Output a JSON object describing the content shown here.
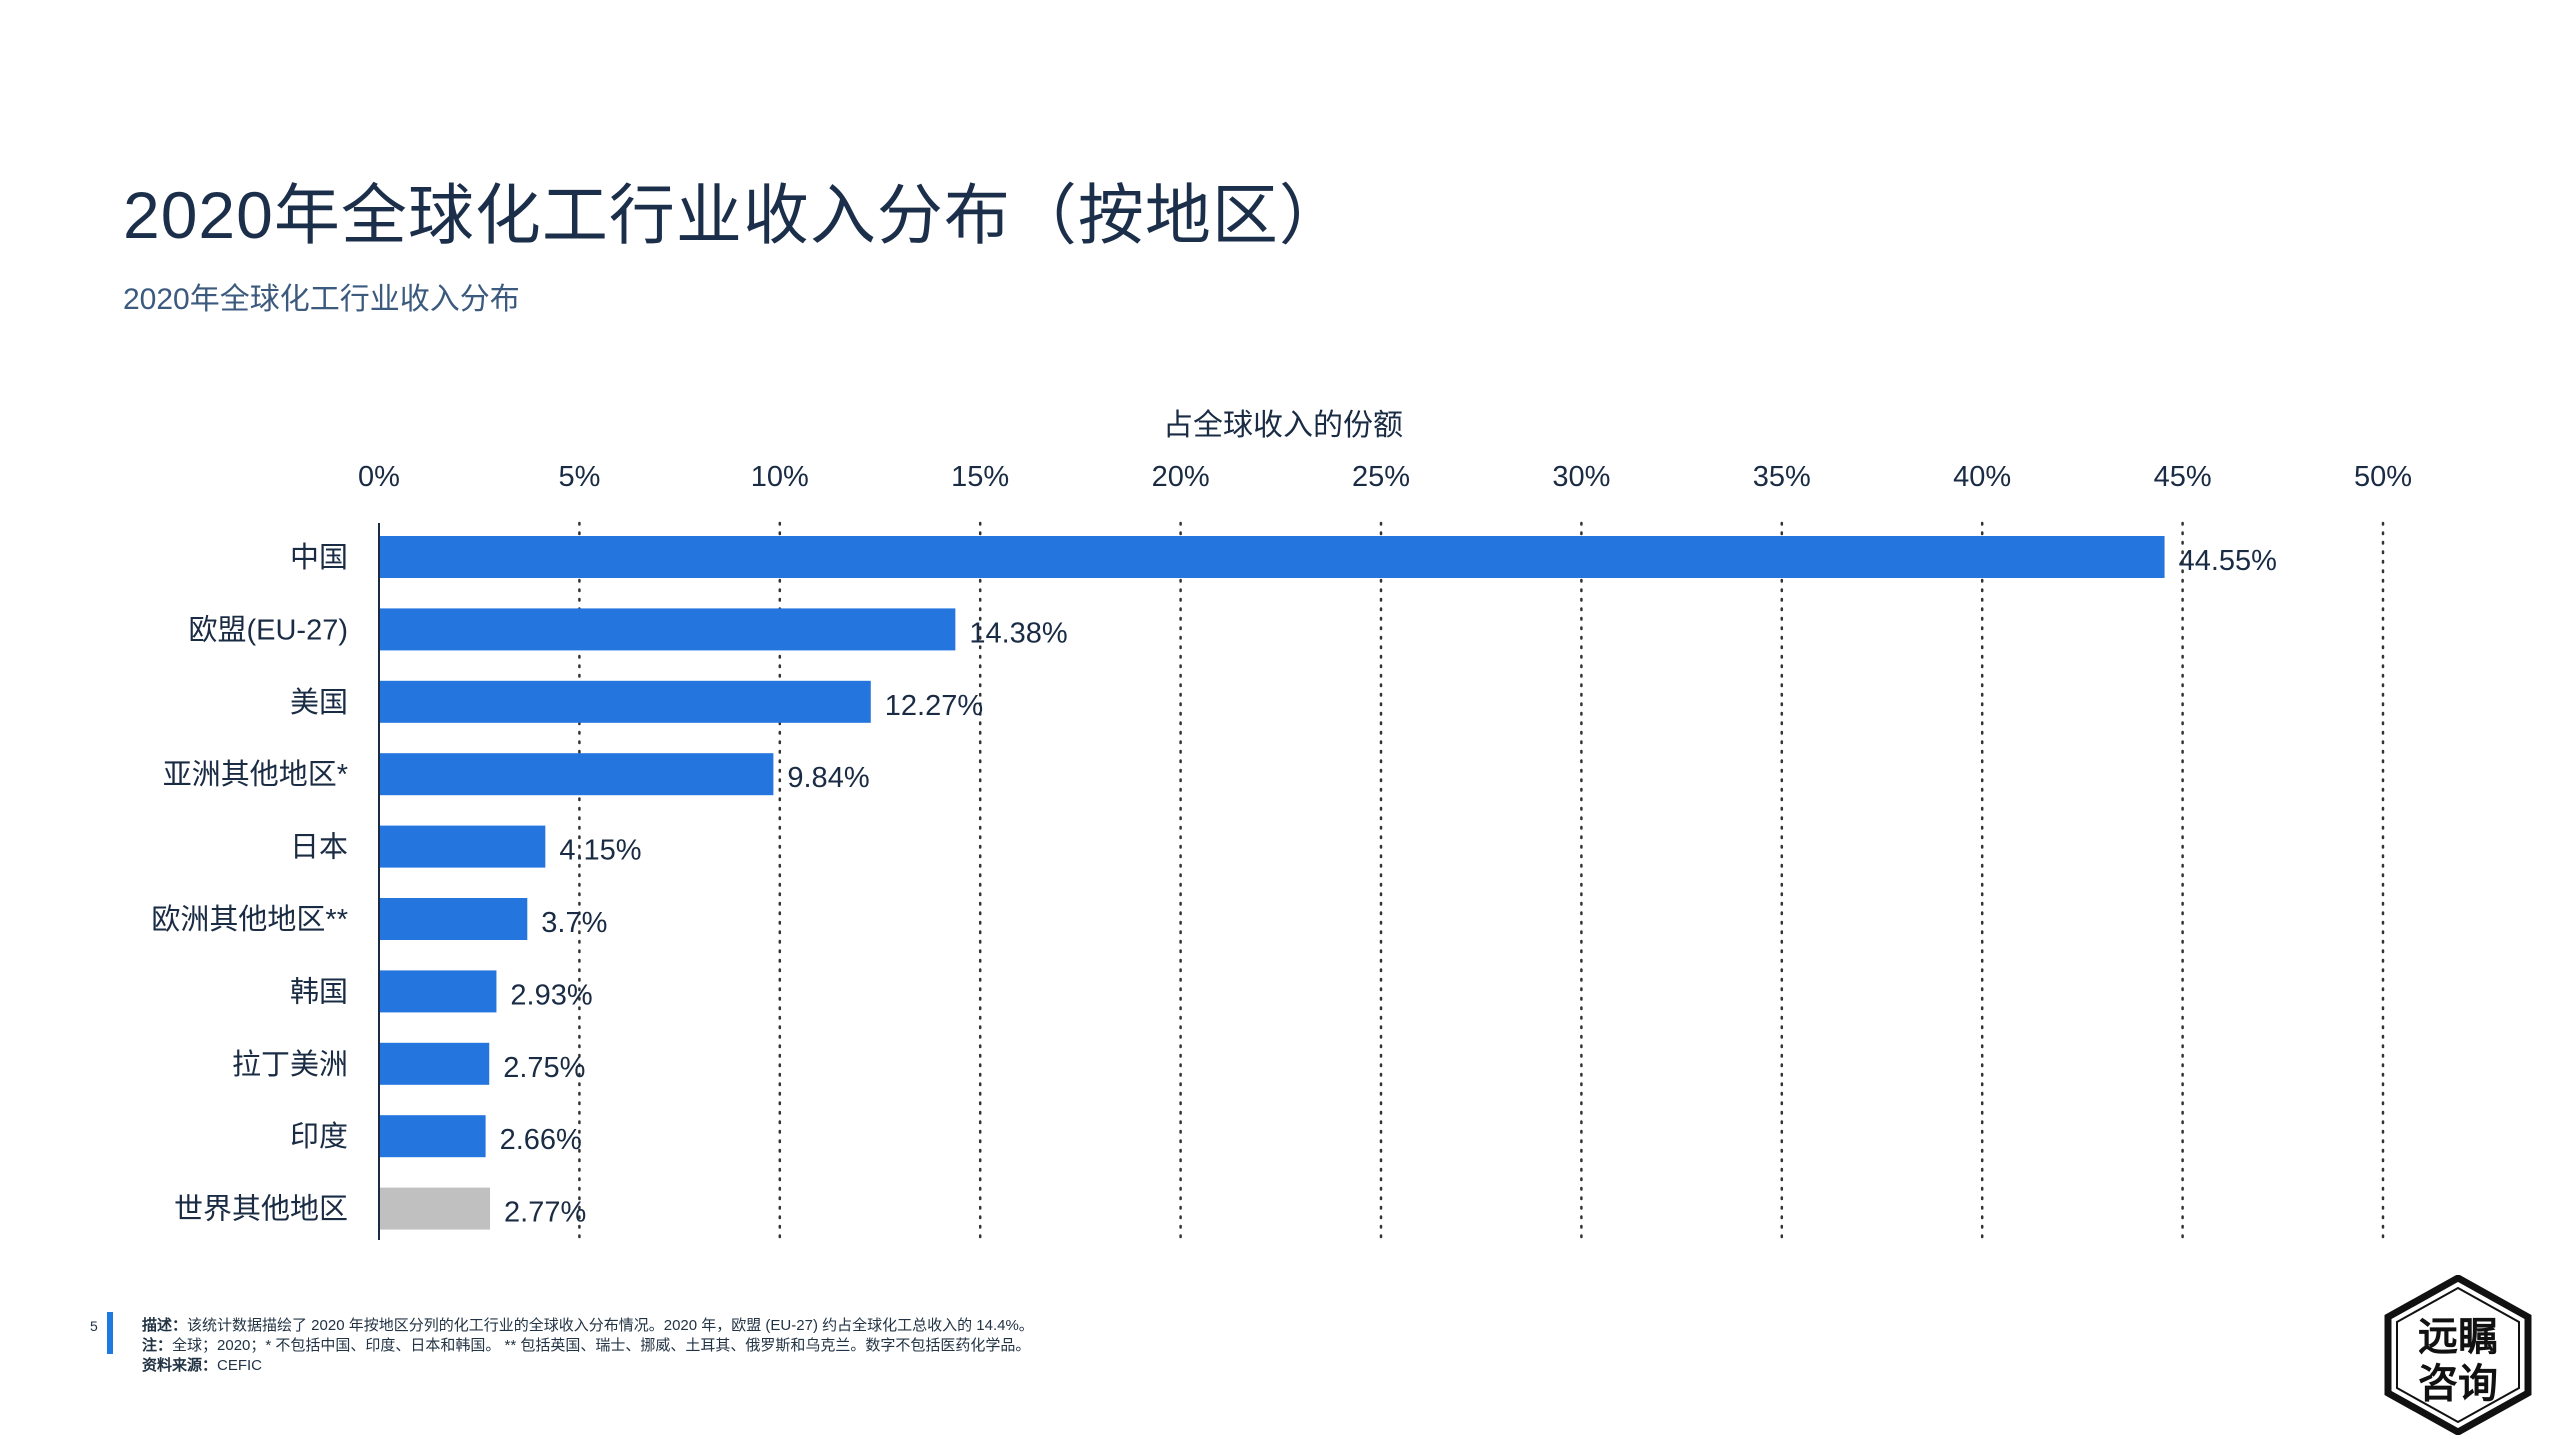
{
  "page": {
    "title": "2020年全球化工行业收入分布（按地区）",
    "subtitle": "2020年全球化工行业收入分布",
    "page_number": "5"
  },
  "chart_data": {
    "type": "bar",
    "orientation": "horizontal",
    "title": "",
    "xlabel": "占全球收入的份额",
    "xlabel_position": "top",
    "xlim": [
      0,
      50
    ],
    "xticks": [
      "0%",
      "5%",
      "10%",
      "15%",
      "20%",
      "25%",
      "30%",
      "35%",
      "40%",
      "45%",
      "50%"
    ],
    "grid": "vertical dotted",
    "categories": [
      "中国",
      "欧盟(EU-27)",
      "美国",
      "亚洲其他地区*",
      "日本",
      "欧洲其他地区**",
      "韩国",
      "拉丁美洲",
      "印度",
      "世界其他地区"
    ],
    "values": [
      44.55,
      14.38,
      12.27,
      9.84,
      4.15,
      3.7,
      2.93,
      2.75,
      2.66,
      2.77
    ],
    "value_labels": [
      "44.55%",
      "14.38%",
      "12.27%",
      "9.84%",
      "4.15%",
      "3.7%",
      "2.93%",
      "2.75%",
      "2.66%",
      "2.77%"
    ],
    "colors": [
      "#2575de",
      "#2575de",
      "#2575de",
      "#2575de",
      "#2575de",
      "#2575de",
      "#2575de",
      "#2575de",
      "#2575de",
      "#c0c0c0"
    ]
  },
  "footer": {
    "description_label": "描述：",
    "description_text": "该统计数据描绘了 2020 年按地区分列的化工行业的全球收入分布情况。2020 年，欧盟 (EU-27) 约占全球化工总收入的 14.4%。",
    "note_label": "注：",
    "note_text": "全球；2020；* 不包括中国、印度、日本和韩国。 ** 包括英国、瑞士、挪威、土耳其、俄罗斯和乌克兰。数字不包括医药化学品。",
    "source_label": "资料来源：",
    "source_text": "CEFIC"
  },
  "logo": {
    "line1": "远瞩",
    "line2": "咨询"
  },
  "colors": {
    "bar": "#2575de",
    "bar_other": "#c0c0c0",
    "accent": "#1f7ae0",
    "text_dark": "#1c2f4a"
  }
}
